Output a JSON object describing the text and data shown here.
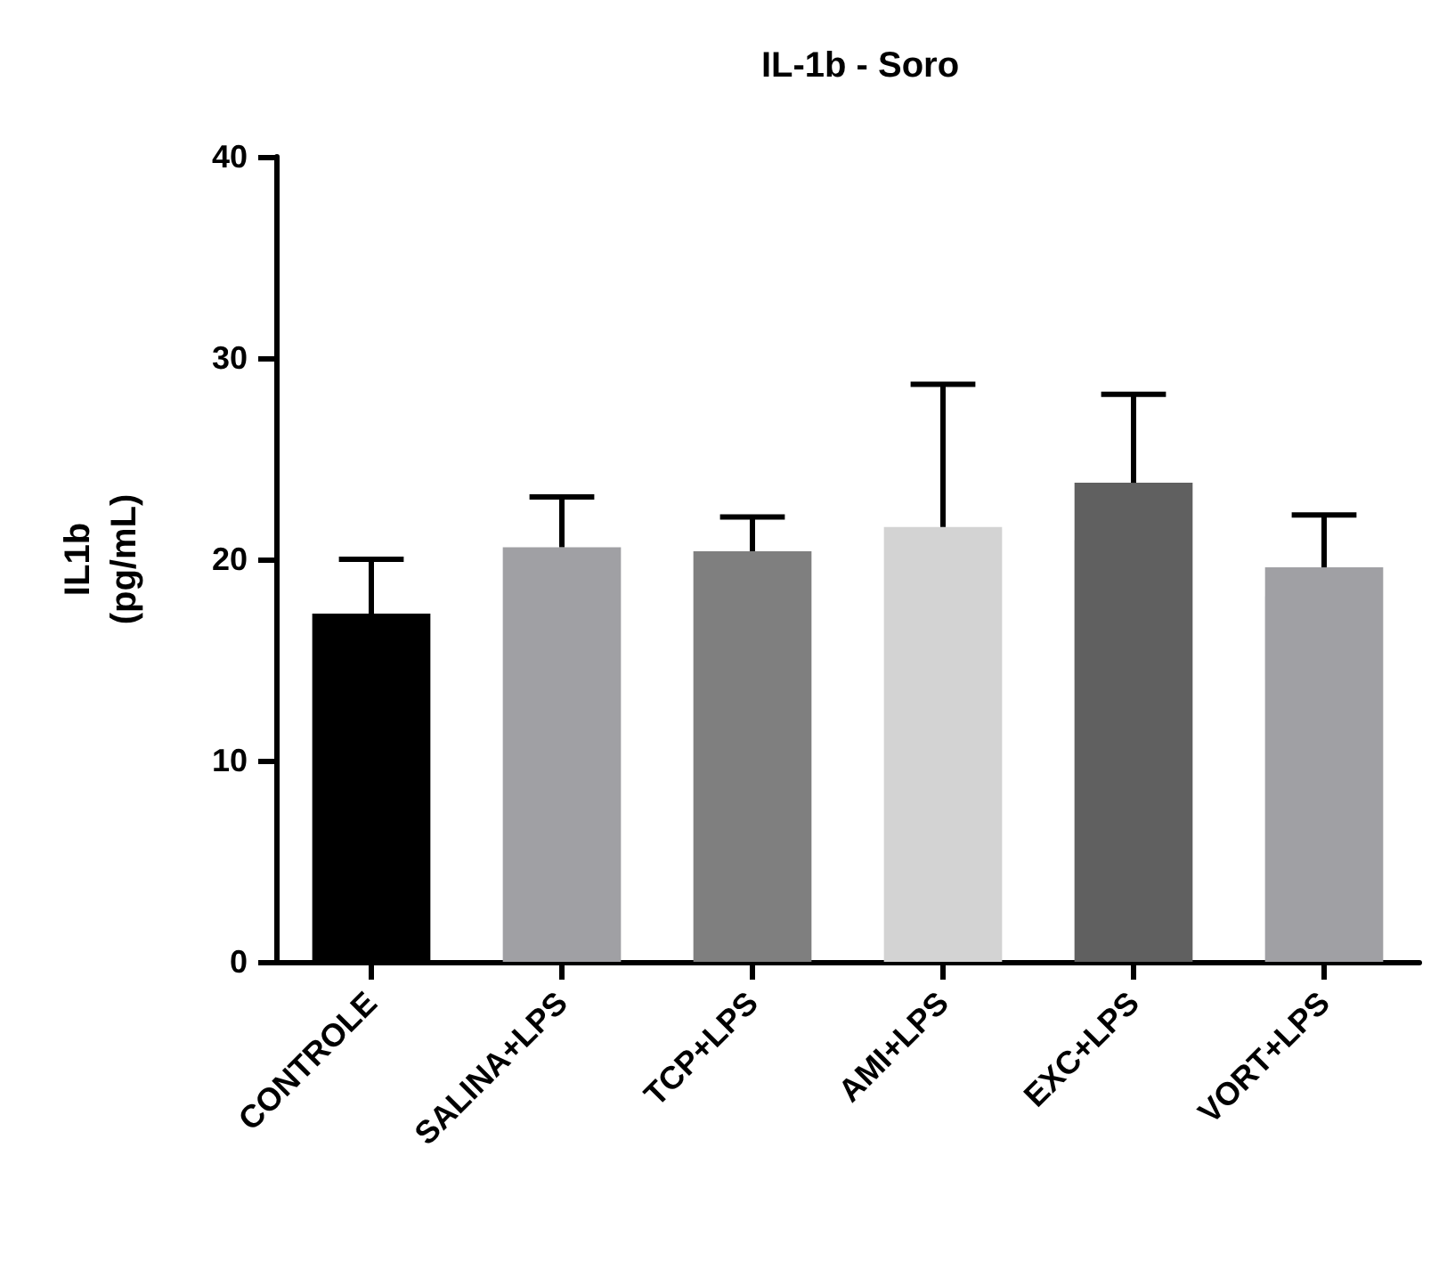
{
  "chart_data": {
    "type": "bar",
    "title": "IL-1b - Soro",
    "ylabel": "IL1b\n(pg/mL)",
    "categories": [
      "CONTROLE",
      "SALINA+LPS",
      "TCP+LPS",
      "AMI+LPS",
      "EXC+LPS",
      "VORT+LPS"
    ],
    "values": [
      17.3,
      20.6,
      20.4,
      21.6,
      23.8,
      19.6
    ],
    "colors": [
      "#000000",
      "#a0a0a4",
      "#7f7f7f",
      "#d3d3d3",
      "#606060",
      "#a0a0a4"
    ],
    "errors": [
      [
        17.3,
        20.0
      ],
      [
        20.6,
        23.1
      ],
      [
        20.4,
        22.1
      ],
      [
        21.6,
        28.7
      ],
      [
        23.8,
        28.2
      ],
      [
        19.6,
        22.2
      ]
    ],
    "ylim": [
      0,
      40
    ],
    "yticks": [
      0,
      10,
      20,
      30,
      40
    ],
    "grid": false
  }
}
